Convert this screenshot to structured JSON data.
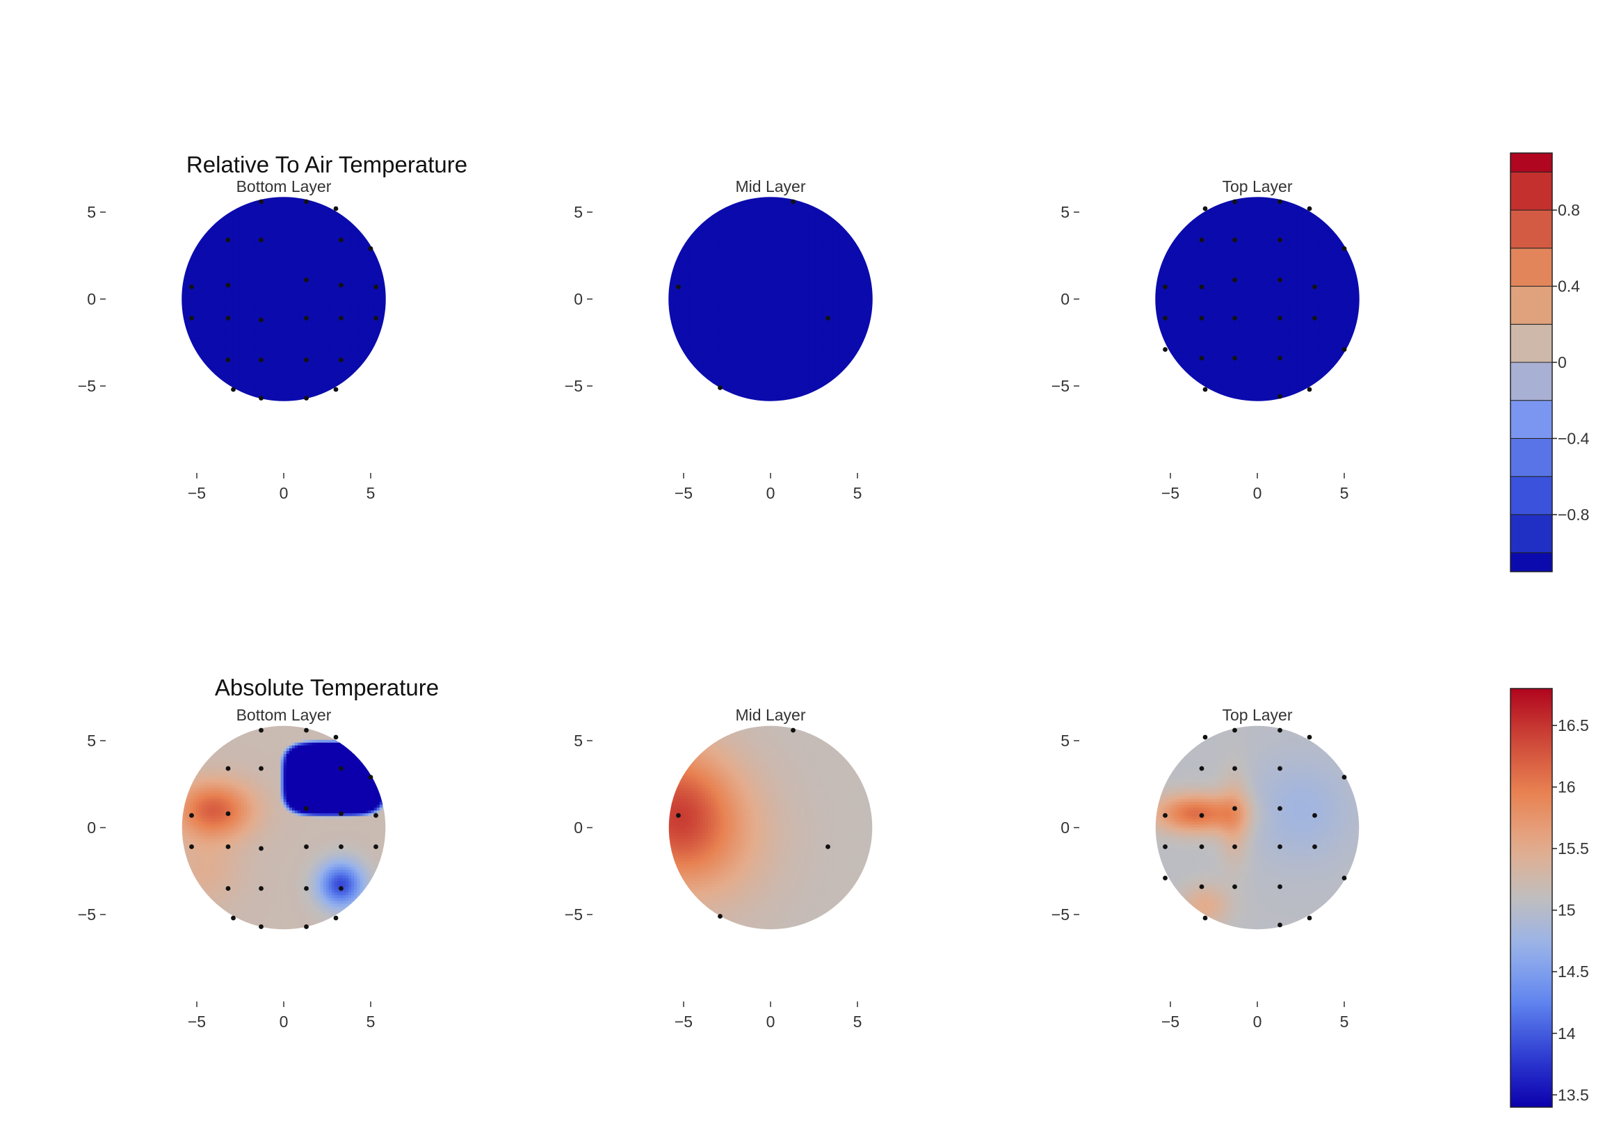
{
  "chart_data": [
    {
      "type": "heatmap",
      "title": "Relative To Air Temperature",
      "style": "filled-contour",
      "colormap": "coolwarm",
      "panels": [
        {
          "subtitle": "Bottom Layer",
          "xticks": [
            "−5",
            "0",
            "5"
          ],
          "yticks": [
            "5",
            "0",
            "−5"
          ],
          "xlim": [
            -6,
            6
          ],
          "ylim": [
            -6,
            6
          ],
          "sensors": [
            [
              -1.3,
              5.6
            ],
            [
              1.3,
              5.6
            ],
            [
              3,
              5.2
            ],
            [
              -3.2,
              3.4
            ],
            [
              -1.3,
              3.4
            ],
            [
              3.3,
              3.4
            ],
            [
              5,
              2.9
            ],
            [
              -5.3,
              0.7
            ],
            [
              -3.2,
              0.8
            ],
            [
              1.3,
              1.1
            ],
            [
              3.3,
              0.8
            ],
            [
              5.3,
              0.7
            ],
            [
              -5.3,
              -1.1
            ],
            [
              -3.2,
              -1.1
            ],
            [
              -1.3,
              -1.2
            ],
            [
              1.3,
              -1.1
            ],
            [
              3.3,
              -1.1
            ],
            [
              5.3,
              -1.1
            ],
            [
              -3.2,
              -3.5
            ],
            [
              -1.3,
              -3.5
            ],
            [
              1.3,
              -3.5
            ],
            [
              3.3,
              -3.5
            ],
            [
              -2.9,
              -5.2
            ],
            [
              -1.3,
              -5.7
            ],
            [
              1.3,
              -5.7
            ],
            [
              3,
              -5.2
            ]
          ],
          "anomalies": [
            {
              "x": -3.5,
              "y": 1.1,
              "value": -0.35,
              "sx": 2.4,
              "sy": 1.5
            }
          ]
        },
        {
          "subtitle": "Mid Layer",
          "xticks": [
            "−5",
            "0",
            "5"
          ],
          "yticks": [
            "5",
            "0",
            "−5"
          ],
          "xlim": [
            -6,
            6
          ],
          "ylim": [
            -6,
            6
          ],
          "sensors": [
            [
              1.3,
              5.6
            ],
            [
              -5.3,
              0.7
            ],
            [
              3.3,
              -1.1
            ],
            [
              -2.9,
              -5.1
            ]
          ],
          "anomalies": [
            {
              "x": -5.4,
              "y": 1.0,
              "value": -0.35,
              "sx": 2.8,
              "sy": 3.0
            }
          ]
        },
        {
          "subtitle": "Top Layer",
          "xticks": [
            "−5",
            "0",
            "5"
          ],
          "yticks": [
            "5",
            "0",
            "−5"
          ],
          "xlim": [
            -6,
            6
          ],
          "ylim": [
            -6,
            6
          ],
          "sensors": [
            [
              -3,
              5.2
            ],
            [
              -1.3,
              5.6
            ],
            [
              1.3,
              5.6
            ],
            [
              3,
              5.2
            ],
            [
              -3.2,
              3.4
            ],
            [
              -1.3,
              3.4
            ],
            [
              1.3,
              3.4
            ],
            [
              5,
              2.9
            ],
            [
              -5.3,
              0.7
            ],
            [
              -3.2,
              0.7
            ],
            [
              -1.3,
              1.1
            ],
            [
              1.3,
              1.1
            ],
            [
              3.3,
              0.7
            ],
            [
              -5.3,
              -1.1
            ],
            [
              -3.2,
              -1.1
            ],
            [
              -1.3,
              -1.1
            ],
            [
              1.3,
              -1.1
            ],
            [
              3.3,
              -1.1
            ],
            [
              -5.3,
              -2.9
            ],
            [
              -3.2,
              -3.4
            ],
            [
              -1.3,
              -3.4
            ],
            [
              1.3,
              -3.4
            ],
            [
              -3,
              -5.2
            ],
            [
              1.3,
              -5.6
            ],
            [
              3,
              -5.2
            ],
            [
              5,
              -2.9
            ]
          ],
          "anomalies": [
            {
              "x": -4.5,
              "y": 1.0,
              "value": -0.4,
              "sx": 3.2,
              "sy": 1.3
            },
            {
              "x": -1.3,
              "y": 1.0,
              "value": -0.25,
              "sx": 1.6,
              "sy": 1.4
            }
          ]
        }
      ],
      "colorbar": {
        "range": [
          -1.1,
          1.1
        ],
        "levels": [
          -1.1,
          -1.0,
          -0.8,
          -0.6,
          -0.4,
          -0.2,
          0,
          0.2,
          0.4,
          0.6,
          0.8,
          1.0,
          1.1
        ],
        "ticks": [
          {
            "value": 0.8,
            "label": "0.8"
          },
          {
            "value": 0.4,
            "label": "0.4"
          },
          {
            "value": 0,
            "label": "0"
          },
          {
            "value": -0.4,
            "label": "−0.4"
          },
          {
            "value": -0.8,
            "label": "−0.8"
          }
        ]
      }
    },
    {
      "type": "heatmap",
      "title": "Absolute Temperature",
      "style": "smooth",
      "colormap": "coolwarm",
      "panels": [
        {
          "subtitle": "Bottom Layer",
          "xticks": [
            "−5",
            "0",
            "5"
          ],
          "yticks": [
            "5",
            "0",
            "−5"
          ],
          "xlim": [
            -6,
            6
          ],
          "ylim": [
            -6,
            6
          ],
          "base": 15.2,
          "sensors": [
            [
              -1.3,
              5.6
            ],
            [
              1.3,
              5.6
            ],
            [
              3,
              5.2
            ],
            [
              -3.2,
              3.4
            ],
            [
              -1.3,
              3.4
            ],
            [
              3.3,
              3.4
            ],
            [
              5,
              2.9
            ],
            [
              -5.3,
              0.7
            ],
            [
              -3.2,
              0.8
            ],
            [
              1.3,
              1.1
            ],
            [
              3.3,
              0.8
            ],
            [
              5.3,
              0.7
            ],
            [
              -5.3,
              -1.1
            ],
            [
              -3.2,
              -1.1
            ],
            [
              -1.3,
              -1.2
            ],
            [
              1.3,
              -1.1
            ],
            [
              3.3,
              -1.1
            ],
            [
              5.3,
              -1.1
            ],
            [
              -3.2,
              -3.5
            ],
            [
              -1.3,
              -3.5
            ],
            [
              1.3,
              -3.5
            ],
            [
              3.3,
              -3.5
            ],
            [
              -2.9,
              -5.2
            ],
            [
              -1.3,
              -5.7
            ],
            [
              1.3,
              -5.7
            ],
            [
              3,
              -5.2
            ]
          ],
          "anomalies": [
            {
              "x": -4,
              "y": 1,
              "value": 1.0,
              "sx": 2.2,
              "sy": 1.6
            },
            {
              "x": 3.3,
              "y": -3.3,
              "value": -1.3,
              "sx": 1.3,
              "sy": 1.3
            },
            {
              "x": -4.5,
              "y": -2.5,
              "value": 0.25,
              "sx": 2,
              "sy": 2
            }
          ],
          "blob": {
            "cx": 2.9,
            "cy": 2.8,
            "rx": 2.8,
            "ry": 2.0,
            "value": 13.4
          }
        },
        {
          "subtitle": "Mid Layer",
          "xticks": [
            "−5",
            "0",
            "5"
          ],
          "yticks": [
            "5",
            "0",
            "−5"
          ],
          "xlim": [
            -6,
            6
          ],
          "ylim": [
            -6,
            6
          ],
          "base": 15.15,
          "sensors": [
            [
              1.3,
              5.6
            ],
            [
              -5.3,
              0.7
            ],
            [
              3.3,
              -1.1
            ],
            [
              -2.9,
              -5.1
            ]
          ],
          "anomalies": [
            {
              "x": -5.6,
              "y": 0.8,
              "value": 1.1,
              "sx": 3.2,
              "sy": 3.8
            },
            {
              "x": -3,
              "y": -0.5,
              "value": 0.35,
              "sx": 3.5,
              "sy": 4
            }
          ]
        },
        {
          "subtitle": "Top Layer",
          "xticks": [
            "−5",
            "0",
            "5"
          ],
          "yticks": [
            "5",
            "0",
            "−5"
          ],
          "xlim": [
            -6,
            6
          ],
          "ylim": [
            -6,
            6
          ],
          "base": 15.05,
          "sensors": [
            [
              -3,
              5.2
            ],
            [
              -1.3,
              5.6
            ],
            [
              1.3,
              5.6
            ],
            [
              3,
              5.2
            ],
            [
              -3.2,
              3.4
            ],
            [
              -1.3,
              3.4
            ],
            [
              1.3,
              3.4
            ],
            [
              5,
              2.9
            ],
            [
              -5.3,
              0.7
            ],
            [
              -3.2,
              0.7
            ],
            [
              -1.3,
              1.1
            ],
            [
              1.3,
              1.1
            ],
            [
              3.3,
              0.7
            ],
            [
              -5.3,
              -1.1
            ],
            [
              -3.2,
              -1.1
            ],
            [
              -1.3,
              -1.1
            ],
            [
              1.3,
              -1.1
            ],
            [
              3.3,
              -1.1
            ],
            [
              -5.3,
              -2.9
            ],
            [
              -3.2,
              -3.4
            ],
            [
              -1.3,
              -3.4
            ],
            [
              1.3,
              -3.4
            ],
            [
              -3,
              -5.2
            ],
            [
              1.3,
              -5.6
            ],
            [
              3,
              -5.2
            ],
            [
              5,
              -2.9
            ]
          ],
          "anomalies": [
            {
              "x": -3.5,
              "y": 0.8,
              "value": 1.05,
              "sx": 2.4,
              "sy": 1.1
            },
            {
              "x": -1.3,
              "y": 0.5,
              "value": 0.45,
              "sx": 0.9,
              "sy": 2.5
            },
            {
              "x": -3,
              "y": -4.5,
              "value": 0.45,
              "sx": 1.4,
              "sy": 1.2
            },
            {
              "x": 2.5,
              "y": 1,
              "value": -0.25,
              "sx": 3,
              "sy": 3
            }
          ]
        }
      ],
      "colorbar": {
        "range": [
          13.4,
          16.8
        ],
        "ticks": [
          {
            "value": 16.5,
            "label": "16.5"
          },
          {
            "value": 16,
            "label": "16"
          },
          {
            "value": 15.5,
            "label": "15.5"
          },
          {
            "value": 15,
            "label": "15"
          },
          {
            "value": 14.5,
            "label": "14.5"
          },
          {
            "value": 14,
            "label": "14"
          },
          {
            "value": 13.5,
            "label": "13.5"
          }
        ]
      }
    }
  ]
}
